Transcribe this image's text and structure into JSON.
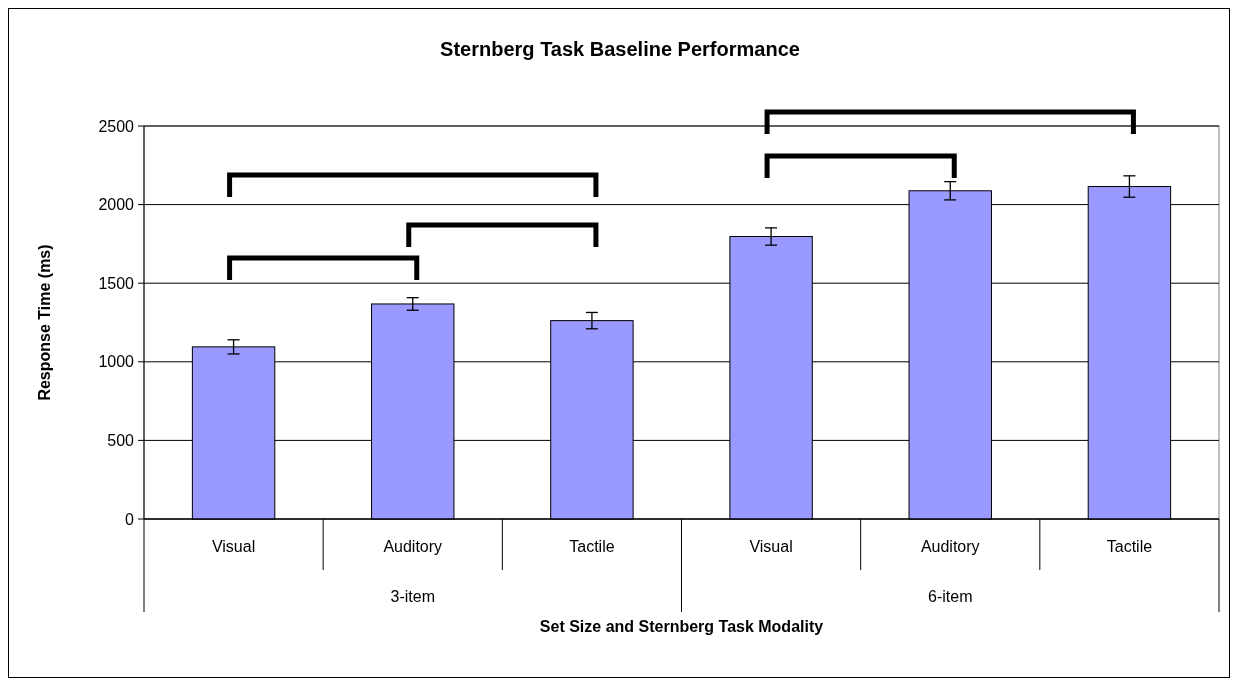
{
  "chart_data": {
    "type": "bar",
    "title": "Sternberg Task Baseline Performance",
    "xlabel": "Set Size and Sternberg Task Modality",
    "ylabel": "Response Time (ms)",
    "categories": [
      "Visual",
      "Auditory",
      "Tactile",
      "Visual",
      "Auditory",
      "Tactile"
    ],
    "values": [
      1095,
      1368,
      1262,
      1797,
      2088,
      2115
    ],
    "errors": [
      45,
      40,
      52,
      55,
      58,
      68
    ],
    "color": "#9999ff",
    "ylim": [
      0,
      2500
    ],
    "yticks": [
      0,
      500,
      1000,
      1500,
      2000,
      2500
    ],
    "grid": "y",
    "annotations": [
      "3-item",
      "6-item"
    ]
  }
}
